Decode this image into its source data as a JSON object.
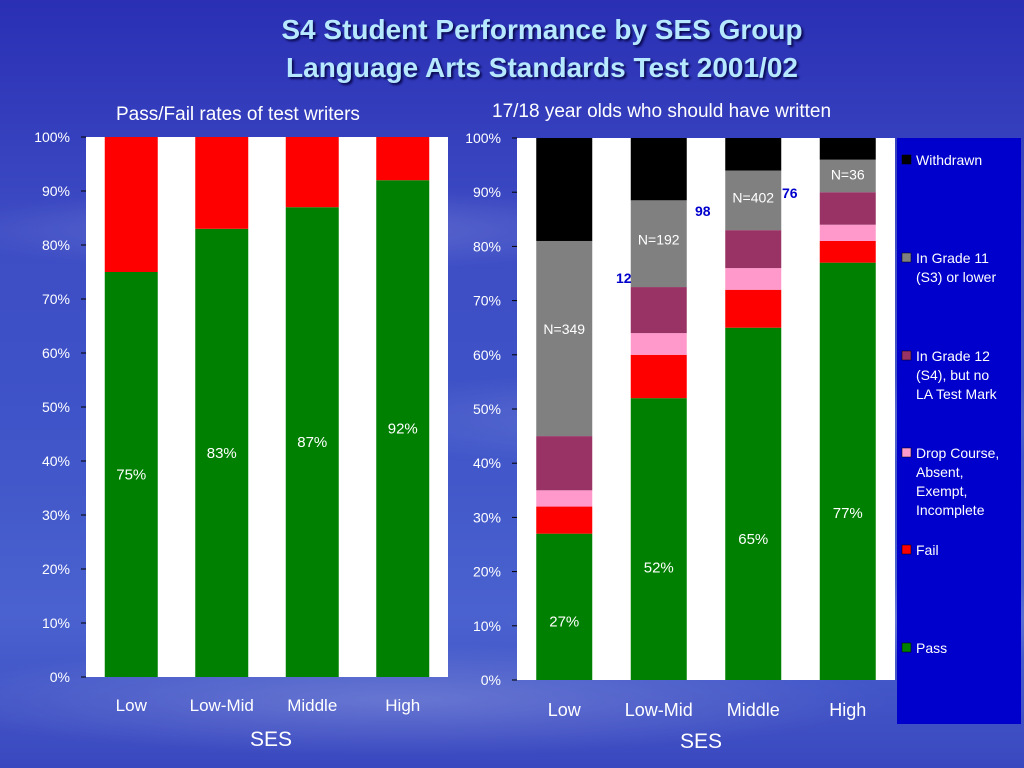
{
  "header": {
    "title_line1": "S4 Student Performance by SES Group",
    "title_line2": "Language Arts Standards Test 2001/02"
  },
  "left_panel": {
    "subtitle": "Pass/Fail rates of test writers",
    "axis_title": "SES"
  },
  "right_panel": {
    "subtitle": "17/18 year olds who should have written",
    "axis_title": "SES"
  },
  "colors": {
    "pass": "#008000",
    "fail": "#ff0000",
    "drop": "#ff99cc",
    "grade12": "#993366",
    "grade11": "#808080",
    "withdrawn": "#000000",
    "legend_bg": "#0000cc",
    "overlay_text": "#0000cc"
  },
  "chart_data": [
    {
      "type": "bar",
      "stacked": true,
      "categories": [
        "Low",
        "Low-Mid",
        "Middle",
        "High"
      ],
      "series": [
        {
          "values": [
            75,
            83,
            87,
            92
          ],
          "labels": [
            "75%",
            "83%",
            "87%",
            "92%"
          ]
        },
        {
          "values": [
            25,
            17,
            13,
            8
          ]
        }
      ],
      "xlabel": "SES",
      "ylim": [
        0,
        100
      ],
      "yticks": [
        "0%",
        "10%",
        "20%",
        "30%",
        "40%",
        "50%",
        "60%",
        "70%",
        "80%",
        "90%",
        "100%"
      ],
      "grid": false
    },
    {
      "type": "bar",
      "stacked": true,
      "categories": [
        "Low",
        "Low-Mid",
        "Middle",
        "High"
      ],
      "series": [
        {
          "name": "Pass",
          "values": [
            27,
            52,
            65,
            77
          ],
          "labels": [
            "27%",
            "52%",
            "65%",
            "77%"
          ]
        },
        {
          "name": "Fail",
          "values": [
            5,
            8,
            7,
            4
          ]
        },
        {
          "name": "Drop Course, Absent, Exempt, Incomplete",
          "values": [
            3,
            4,
            4,
            3
          ]
        },
        {
          "name": "In Grade 12 (S4), but no LA Test Mark",
          "values": [
            10,
            8.5,
            7,
            6
          ]
        },
        {
          "name": "In Grade 11 (S3) or lower",
          "values": [
            36,
            16,
            11,
            6
          ]
        },
        {
          "name": "Withdrawn",
          "values": [
            19,
            11.5,
            6,
            4
          ]
        }
      ],
      "n_labels": [
        "N=349",
        "N=192",
        "N=402",
        "N=36"
      ],
      "overlay_fragments": [
        "12",
        "98",
        "76"
      ],
      "xlabel": "SES",
      "ylim": [
        0,
        100
      ],
      "yticks": [
        "0%",
        "10%",
        "20%",
        "30%",
        "40%",
        "50%",
        "60%",
        "70%",
        "80%",
        "90%",
        "100%"
      ],
      "legend_position": "right",
      "grid": false
    }
  ]
}
